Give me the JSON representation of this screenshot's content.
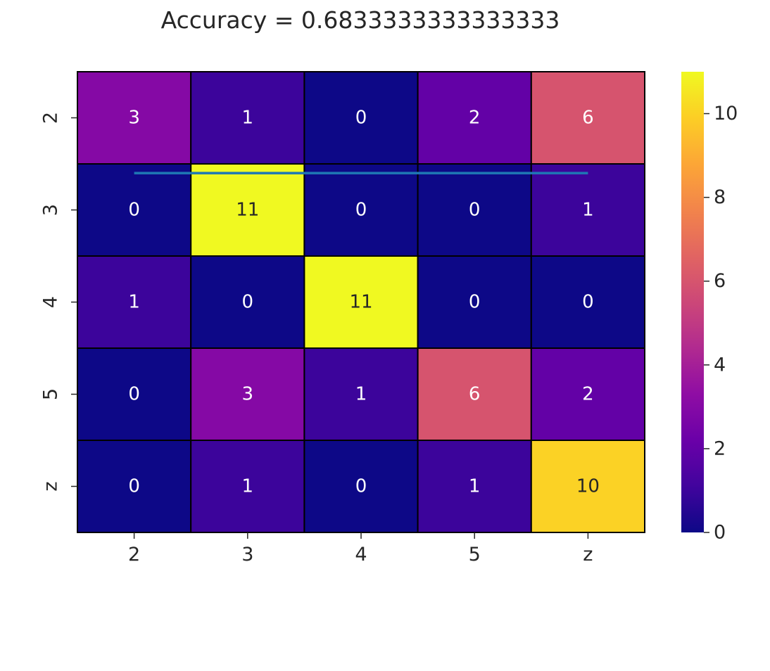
{
  "chart_data": {
    "type": "heatmap",
    "title": "Accuracy = 0.6833333333333333",
    "xlabel": "",
    "ylabel": "",
    "x_categories": [
      "2",
      "3",
      "4",
      "5",
      "z"
    ],
    "y_categories": [
      "2",
      "3",
      "4",
      "5",
      "z"
    ],
    "values": [
      [
        3,
        1,
        0,
        2,
        6
      ],
      [
        0,
        11,
        0,
        0,
        1
      ],
      [
        1,
        0,
        11,
        0,
        0
      ],
      [
        0,
        3,
        1,
        6,
        2
      ],
      [
        0,
        1,
        0,
        1,
        10
      ]
    ],
    "colormap": "plasma",
    "vmin": 0,
    "vmax": 11,
    "colorbar_ticks": [
      0,
      2,
      4,
      6,
      8,
      10
    ],
    "annotation_colors": {
      "light_text": "#ffffff",
      "dark_text": "#262626"
    },
    "cell_border_color": "#000000",
    "overlay_line": {
      "color": "#1f77b4",
      "x_start": 0.5,
      "x_end": 4.5,
      "y": 1.1
    }
  }
}
